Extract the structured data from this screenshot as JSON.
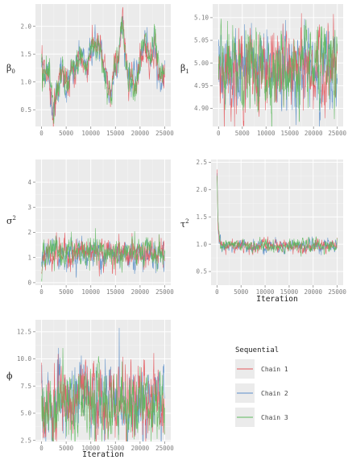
{
  "colors": {
    "panel_bg": "#ebebeb",
    "grid_major": "#ffffff",
    "tick_text": "#7f7f7f",
    "chain_1": "#e4585d",
    "chain_2": "#5b8ec9",
    "chain_3": "#5cb85c"
  },
  "legend": {
    "title": "Sequential",
    "items": [
      {
        "label": "Chain 1",
        "color": "#e4585d"
      },
      {
        "label": "Chain 2",
        "color": "#5b8ec9"
      },
      {
        "label": "Chain 3",
        "color": "#5cb85c"
      }
    ]
  },
  "chart_data": [
    {
      "type": "line",
      "id": "beta0",
      "ylabel": "β",
      "ylabel_sub": "0",
      "xlabel": "",
      "xlim": [
        0,
        25000
      ],
      "ylim": [
        0.2,
        2.4
      ],
      "xticks": [
        0,
        5000,
        10000,
        15000,
        20000,
        25000
      ],
      "xtick_labels": [
        "0",
        "5000",
        "10000",
        "15000",
        "20000",
        "25000"
      ],
      "yticks": [
        0.5,
        1.0,
        1.5,
        2.0
      ],
      "ytick_labels": [
        "0.5",
        "1.0",
        "1.5",
        "2.0"
      ],
      "trace_knots": {
        "x": [
          0,
          500,
          1500,
          2500,
          3000,
          4000,
          5000,
          6000,
          7000,
          8000,
          9000,
          10000,
          11000,
          12000,
          13000,
          14000,
          15000,
          16000,
          16500,
          17000,
          18000,
          19000,
          20000,
          21000,
          22000,
          23000,
          24000,
          25000
        ],
        "y": [
          1.3,
          1.25,
          1.1,
          0.4,
          0.8,
          1.2,
          0.9,
          1.1,
          1.25,
          1.5,
          1.2,
          1.6,
          1.7,
          1.55,
          1.1,
          0.75,
          1.3,
          1.7,
          2.1,
          1.4,
          1.1,
          0.95,
          1.4,
          1.7,
          1.35,
          1.75,
          1.0,
          1.2
        ]
      },
      "noise_sd": 0.12
    },
    {
      "type": "line",
      "id": "beta1",
      "ylabel": "β",
      "ylabel_sub": "1",
      "xlabel": "",
      "xlim": [
        0,
        25000
      ],
      "ylim": [
        4.86,
        5.13
      ],
      "xticks": [
        0,
        5000,
        10000,
        15000,
        20000,
        25000
      ],
      "xtick_labels": [
        "0",
        "5000",
        "10000",
        "15000",
        "20000",
        "25000"
      ],
      "yticks": [
        4.9,
        4.95,
        5.0,
        5.05,
        5.1
      ],
      "ytick_labels": [
        "4.90",
        "4.95",
        "5.00",
        "5.05",
        "5.10"
      ],
      "trace_knots": {
        "x": [
          0,
          25000
        ],
        "y": [
          4.985,
          4.985
        ]
      },
      "noise_sd": 0.035
    },
    {
      "type": "line",
      "id": "sigma2",
      "ylabel": "σ",
      "ylabel_sup": "2",
      "xlabel": "",
      "xlim": [
        0,
        25000
      ],
      "ylim": [
        -0.1,
        4.9
      ],
      "xticks": [
        0,
        5000,
        10000,
        15000,
        20000,
        25000
      ],
      "xtick_labels": [
        "0",
        "5000",
        "10000",
        "15000",
        "20000",
        "25000"
      ],
      "yticks": [
        0,
        1,
        2,
        3,
        4
      ],
      "ytick_labels": [
        "0",
        "1",
        "2",
        "3",
        "4"
      ],
      "trace_knots": {
        "x": [
          0,
          300,
          1000,
          25000
        ],
        "y": [
          0.4,
          0.9,
          1.2,
          1.15
        ]
      },
      "noise_sd": 0.25
    },
    {
      "type": "line",
      "id": "tau2",
      "ylabel": "τ",
      "ylabel_sup": "2",
      "xlabel": "Iteration",
      "xlim": [
        0,
        25000
      ],
      "ylim": [
        0.25,
        2.55
      ],
      "xticks": [
        0,
        5000,
        10000,
        15000,
        20000,
        25000
      ],
      "xtick_labels": [
        "0",
        "5000",
        "10000",
        "15000",
        "20000",
        "25000"
      ],
      "yticks": [
        0.5,
        1.0,
        1.5,
        2.0,
        2.5
      ],
      "ytick_labels": [
        "0.5",
        "1.0",
        "1.5",
        "2.0",
        "2.5"
      ],
      "trace_knots": {
        "x": [
          0,
          200,
          500,
          1000,
          25000
        ],
        "y": [
          2.3,
          1.4,
          1.05,
          0.97,
          0.97
        ]
      },
      "noise_sd": 0.05
    },
    {
      "type": "line",
      "id": "phi",
      "ylabel": "ϕ",
      "xlabel": "Iteration",
      "xlim": [
        0,
        25000
      ],
      "ylim": [
        2.4,
        13.6
      ],
      "xticks": [
        0,
        5000,
        10000,
        15000,
        20000,
        25000
      ],
      "xtick_labels": [
        "0",
        "5000",
        "10000",
        "15000",
        "20000",
        "25000"
      ],
      "yticks": [
        2.5,
        5.0,
        7.5,
        10.0,
        12.5
      ],
      "ytick_labels": [
        "2.5",
        "5.0",
        "7.5",
        "10.0",
        "12.5"
      ],
      "trace_knots": {
        "x": [
          0,
          2000,
          4000,
          6000,
          8000,
          10000,
          12000,
          14000,
          16000,
          18000,
          20000,
          22000,
          25000
        ],
        "y": [
          6,
          5,
          6.5,
          5.5,
          6.8,
          5.8,
          6.2,
          5.5,
          6.5,
          5.6,
          6.0,
          6.4,
          5.8
        ]
      },
      "noise_sd": 1.4
    }
  ]
}
